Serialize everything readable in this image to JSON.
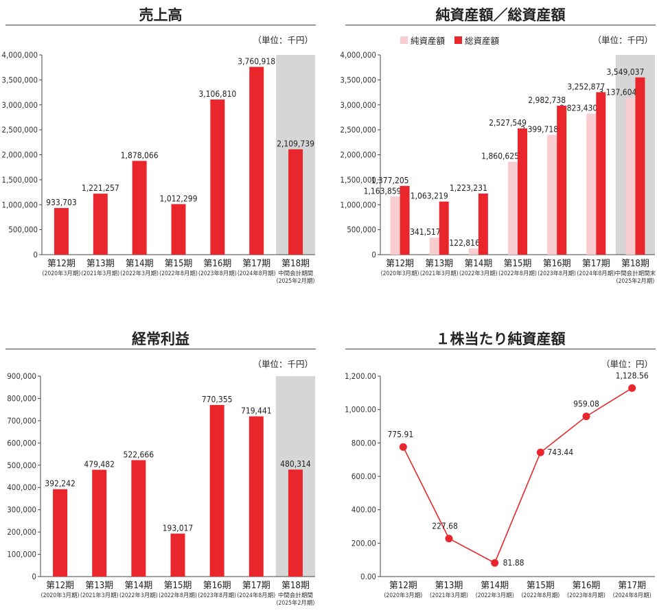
{
  "colors": {
    "red": "#e8262b",
    "pink": "#f9cdd0",
    "highlight": "#d6d6d6",
    "axis": "#444444",
    "grid": "#bdbdbd"
  },
  "categories": {
    "main": [
      {
        "label": "第12期",
        "sub": [
          "(2020年3月期)"
        ]
      },
      {
        "label": "第13期",
        "sub": [
          "(2021年3月期)"
        ]
      },
      {
        "label": "第14期",
        "sub": [
          "(2022年3月期)"
        ]
      },
      {
        "label": "第15期",
        "sub": [
          "(2022年8月期)"
        ]
      },
      {
        "label": "第16期",
        "sub": [
          "(2023年8月期)"
        ]
      },
      {
        "label": "第17期",
        "sub": [
          "(2024年8月期)"
        ]
      },
      {
        "label": "第18期",
        "sub": [
          "中間会計期間",
          "(2025年2月期)"
        ]
      }
    ],
    "assets": [
      {
        "label": "第12期",
        "sub": [
          "(2020年3月期)"
        ]
      },
      {
        "label": "第13期",
        "sub": [
          "(2021年3月期)"
        ]
      },
      {
        "label": "第14期",
        "sub": [
          "(2022年3月期)"
        ]
      },
      {
        "label": "第15期",
        "sub": [
          "(2022年8月期)"
        ]
      },
      {
        "label": "第16期",
        "sub": [
          "(2023年8月期)"
        ]
      },
      {
        "label": "第17期",
        "sub": [
          "(2024年8月期)"
        ]
      },
      {
        "label": "第18期",
        "sub": [
          "中間会計期間末",
          "(2025年2月期)"
        ]
      }
    ],
    "bps": [
      {
        "label": "第12期",
        "sub": [
          "(2020年3月期)"
        ]
      },
      {
        "label": "第13期",
        "sub": [
          "(2021年3月期)"
        ]
      },
      {
        "label": "第14期",
        "sub": [
          "(2022年3月期)"
        ]
      },
      {
        "label": "第15期",
        "sub": [
          "(2022年8月期)"
        ]
      },
      {
        "label": "第16期",
        "sub": [
          "(2023年8月期)"
        ]
      },
      {
        "label": "第17期",
        "sub": [
          "(2024年8月期)"
        ]
      }
    ]
  },
  "chart_data": [
    {
      "id": "sales",
      "type": "bar",
      "title": "売上高",
      "unit": "（単位：千円）",
      "ylim": [
        0,
        4000000
      ],
      "yticks": [
        "0",
        "500,000",
        "1,000,000",
        "1,500,000",
        "2,000,000",
        "2,500,000",
        "3,000,000",
        "3,500,000",
        "4,000,000"
      ],
      "highlight_last": true,
      "series": [
        {
          "values": [
            933703,
            1221257,
            1878066,
            1012299,
            3106810,
            3760918,
            2109739
          ],
          "labels": [
            "933,703",
            "1,221,257",
            "1,878,066",
            "1,012,299",
            "3,106,810",
            "3,760,918",
            "2,109,739"
          ]
        }
      ]
    },
    {
      "id": "assets",
      "type": "bar",
      "title": "純資産額／総資産額",
      "unit": "（単位：千円）",
      "legend": [
        "純資産額",
        "総資産額"
      ],
      "ylim": [
        0,
        4000000
      ],
      "yticks": [
        "0",
        "500,000",
        "1,000,000",
        "1,500,000",
        "2,000,000",
        "2,500,000",
        "3,000,000",
        "3,500,000",
        "4,000,000"
      ],
      "highlight_last": true,
      "series": [
        {
          "name": "純資産額",
          "values": [
            1163859,
            341517,
            122816,
            1860625,
            2399718,
            2823430,
            3137604
          ],
          "labels": [
            "1,163,859",
            "341,517",
            "122,816",
            "1,860,625",
            "2,399,718",
            "2,823,430",
            "3,137,604"
          ]
        },
        {
          "name": "総資産額",
          "values": [
            1377205,
            1063219,
            1223231,
            2527549,
            2982738,
            3252877,
            3549037
          ],
          "labels": [
            "1,377,205",
            "1,063,219",
            "1,223,231",
            "2,527,549",
            "2,982,738",
            "3,252,877",
            "3,549,037"
          ]
        }
      ]
    },
    {
      "id": "ordinary",
      "type": "bar",
      "title": "経常利益",
      "unit": "（単位：千円）",
      "ylim": [
        0,
        900000
      ],
      "yticks": [
        "0",
        "100,000",
        "200,000",
        "300,000",
        "400,000",
        "500,000",
        "600,000",
        "700,000",
        "800,000",
        "900,000"
      ],
      "highlight_last": true,
      "series": [
        {
          "values": [
            392242,
            479482,
            522666,
            193017,
            770355,
            719441,
            480314
          ],
          "labels": [
            "392,242",
            "479,482",
            "522,666",
            "193,017",
            "770,355",
            "719,441",
            "480,314"
          ]
        }
      ]
    },
    {
      "id": "bps",
      "type": "line",
      "title": "１株当たり純資産額",
      "unit": "（単位：円）",
      "ylim": [
        0,
        1200
      ],
      "yticks": [
        "0.00",
        "200.00",
        "400.00",
        "600.00",
        "800.00",
        "1,000.00",
        "1,200.00"
      ],
      "highlight_last": false,
      "series": [
        {
          "values": [
            775.91,
            227.68,
            81.88,
            743.44,
            959.08,
            1128.56
          ],
          "labels": [
            "775.91",
            "227.68",
            "81.88",
            "743.44",
            "959.08",
            "1,128.56"
          ]
        }
      ]
    }
  ]
}
